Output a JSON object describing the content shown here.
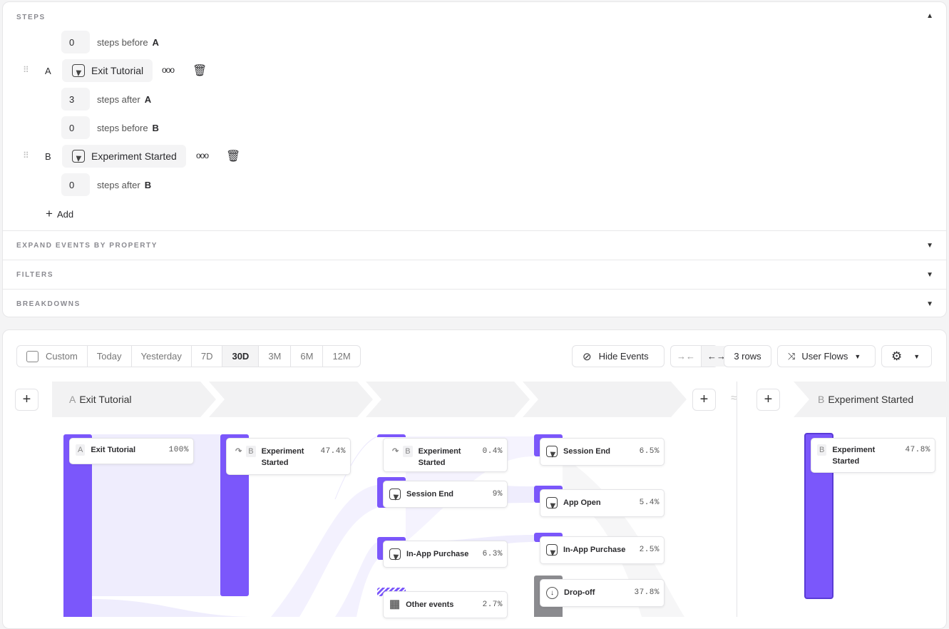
{
  "steps_panel": {
    "title": "STEPS",
    "rows": [
      {
        "count": "0",
        "text": "steps before",
        "letter": "A"
      },
      {
        "letter": "A",
        "event": "Exit Tutorial"
      },
      {
        "count": "3",
        "text": "steps after",
        "letter": "A"
      },
      {
        "count": "0",
        "text": "steps before",
        "letter": "B"
      },
      {
        "letter": "B",
        "event": "Experiment Started"
      },
      {
        "count": "0",
        "text": "steps after",
        "letter": "B"
      }
    ],
    "add_label": "Add",
    "sections": [
      "EXPAND EVENTS BY PROPERTY",
      "FILTERS",
      "BREAKDOWNS"
    ]
  },
  "toolbar": {
    "date_ranges": [
      "Custom",
      "Today",
      "Yesterday",
      "7D",
      "30D",
      "3M",
      "6M",
      "12M"
    ],
    "selected_range": "30D",
    "hide_events": "Hide Events",
    "rows": "3 rows",
    "view": "User Flows"
  },
  "flow": {
    "headers": {
      "a_letter": "A",
      "a_name": "Exit Tutorial",
      "b_letter": "B",
      "b_name": "Experiment Started"
    },
    "accent": "#7b57fb",
    "nodes": {
      "c1": {
        "letter": "A",
        "name": "Exit Tutorial",
        "pct": "100%"
      },
      "c2": {
        "letter": "B",
        "name": "Experiment Started",
        "pct": "47.4%"
      },
      "c3": [
        {
          "letter": "B",
          "name": "Experiment Started",
          "pct": "0.4%"
        },
        {
          "name": "Session End",
          "pct": "9%"
        },
        {
          "name": "In-App Purchase",
          "pct": "6.3%"
        },
        {
          "name": "Other events",
          "pct": "2.7%"
        }
      ],
      "c4": [
        {
          "name": "Session End",
          "pct": "6.5%"
        },
        {
          "name": "App Open",
          "pct": "5.4%"
        },
        {
          "name": "In-App Purchase",
          "pct": "2.5%"
        },
        {
          "name": "Drop-off",
          "pct": "37.8%"
        }
      ],
      "end": {
        "letter": "B",
        "name": "Experiment Started",
        "pct": "47.8%"
      }
    }
  }
}
